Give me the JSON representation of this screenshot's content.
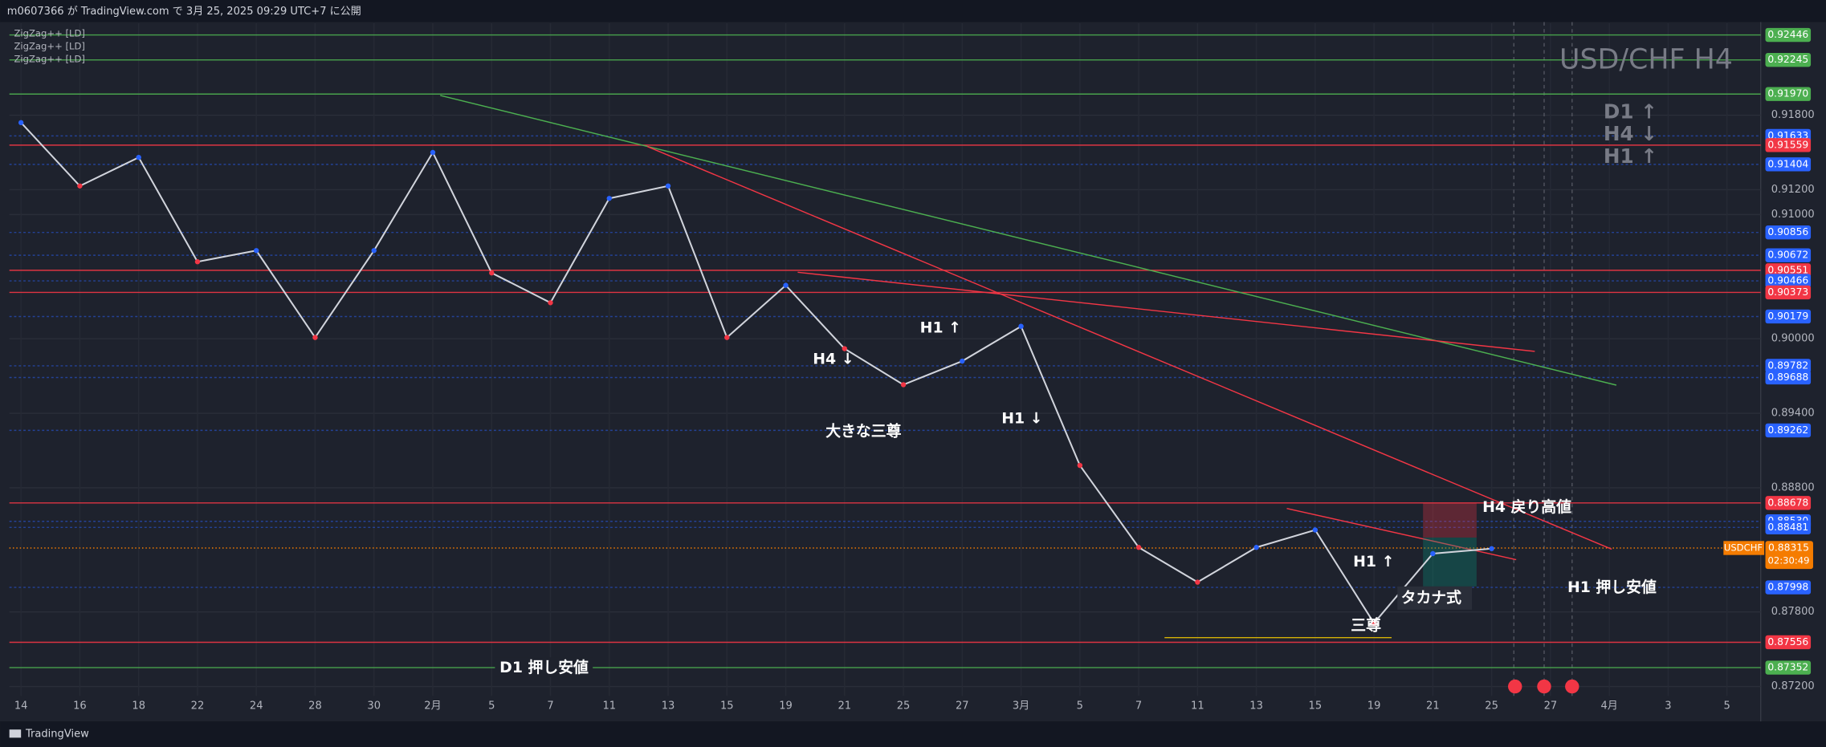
{
  "header": "m0607366 が TradingView.com で 3月 25, 2025 09:29 UTC+7 に公開",
  "footer": "TradingView",
  "indicators": [
    "ZigZag++ [LD]",
    "ZigZag++ [LD]",
    "ZigZag++ [LD]"
  ],
  "annotations": {
    "symbol_title": "USD/CHF H4",
    "trend_d1": "D1 ↑",
    "trend_h4": "H4 ↓",
    "trend_h1": "H1 ↑",
    "h1_up_1": "H1 ↑",
    "h4_down": "H4 ↓",
    "big_hs": "大きな三尊",
    "h1_down": "H1 ↓",
    "h4_high": "H4 戻り高値",
    "h1_low": "H1 押し安値",
    "h1_up_2": "H1 ↑",
    "takana": "タカナ式",
    "hs": "三尊",
    "d1_low": "D1 押し安値"
  },
  "chart_data": {
    "type": "line",
    "categories": [
      "14",
      "16",
      "18",
      "22",
      "24",
      "28",
      "30",
      "2月",
      "5",
      "7",
      "11",
      "13",
      "15",
      "19",
      "21",
      "25",
      "27",
      "3月",
      "5",
      "7",
      "11",
      "13",
      "15",
      "19",
      "21",
      "25",
      "27",
      "4月",
      "3",
      "5"
    ],
    "series": [
      {
        "name": "USDCHF",
        "color": "#d1d4dc",
        "values": [
          0.9174,
          0.9123,
          0.9146,
          0.9062,
          0.9071,
          0.9001,
          0.9071,
          0.915,
          0.9053,
          0.9029,
          0.9113,
          0.9123,
          0.9001,
          0.9043,
          0.8992,
          0.8963,
          0.8982,
          0.901,
          0.8898,
          0.8832,
          0.8804,
          0.8832,
          0.8846,
          0.8771,
          0.8827,
          0.8831,
          null,
          null,
          null,
          null
        ]
      }
    ],
    "ylim": [
      0.87125,
      0.9254
    ],
    "yticks": [
      {
        "value": 0.918,
        "label": "0.91800"
      },
      {
        "value": 0.912,
        "label": "0.91200"
      },
      {
        "value": 0.91,
        "label": "0.91000"
      },
      {
        "value": 0.9,
        "label": "0.90000"
      },
      {
        "value": 0.894,
        "label": "0.89400"
      },
      {
        "value": 0.888,
        "label": "0.88800"
      },
      {
        "value": 0.878,
        "label": "0.87800"
      },
      {
        "value": 0.872,
        "label": "0.87200"
      }
    ],
    "grid": true,
    "levels": [
      {
        "price": 0.92446,
        "color": "#4caf50"
      },
      {
        "price": 0.92245,
        "color": "#4caf50"
      },
      {
        "price": 0.9197,
        "label": "0.91970",
        "color": "#4caf50"
      },
      {
        "price": 0.91633,
        "color": "#2962ff"
      },
      {
        "price": 0.91559,
        "color": "#f23645"
      },
      {
        "price": 0.91404,
        "color": "#2962ff"
      },
      {
        "price": 0.90856,
        "color": "#2962ff"
      },
      {
        "price": 0.90672,
        "color": "#2962ff"
      },
      {
        "price": 0.90551,
        "color": "#f23645"
      },
      {
        "price": 0.90466,
        "color": "#2962ff"
      },
      {
        "price": 0.90373,
        "color": "#f23645"
      },
      {
        "price": 0.90179,
        "color": "#2962ff"
      },
      {
        "price": 0.89782,
        "color": "#2962ff"
      },
      {
        "price": 0.89688,
        "color": "#2962ff"
      },
      {
        "price": 0.89262,
        "color": "#2962ff"
      },
      {
        "price": 0.88678,
        "color": "#f23645"
      },
      {
        "price": 0.8853,
        "label": "0.88530",
        "color": "#2962ff"
      },
      {
        "price": 0.88481,
        "color": "#2962ff"
      },
      {
        "price": 0.87998,
        "color": "#2962ff"
      },
      {
        "price": 0.87556,
        "color": "#f23645"
      },
      {
        "price": 0.87352,
        "color": "#4caf50"
      }
    ],
    "current": {
      "name": "USDCHF",
      "price": 0.88315,
      "countdown": "02:30:49",
      "color": "#f57c00"
    }
  }
}
